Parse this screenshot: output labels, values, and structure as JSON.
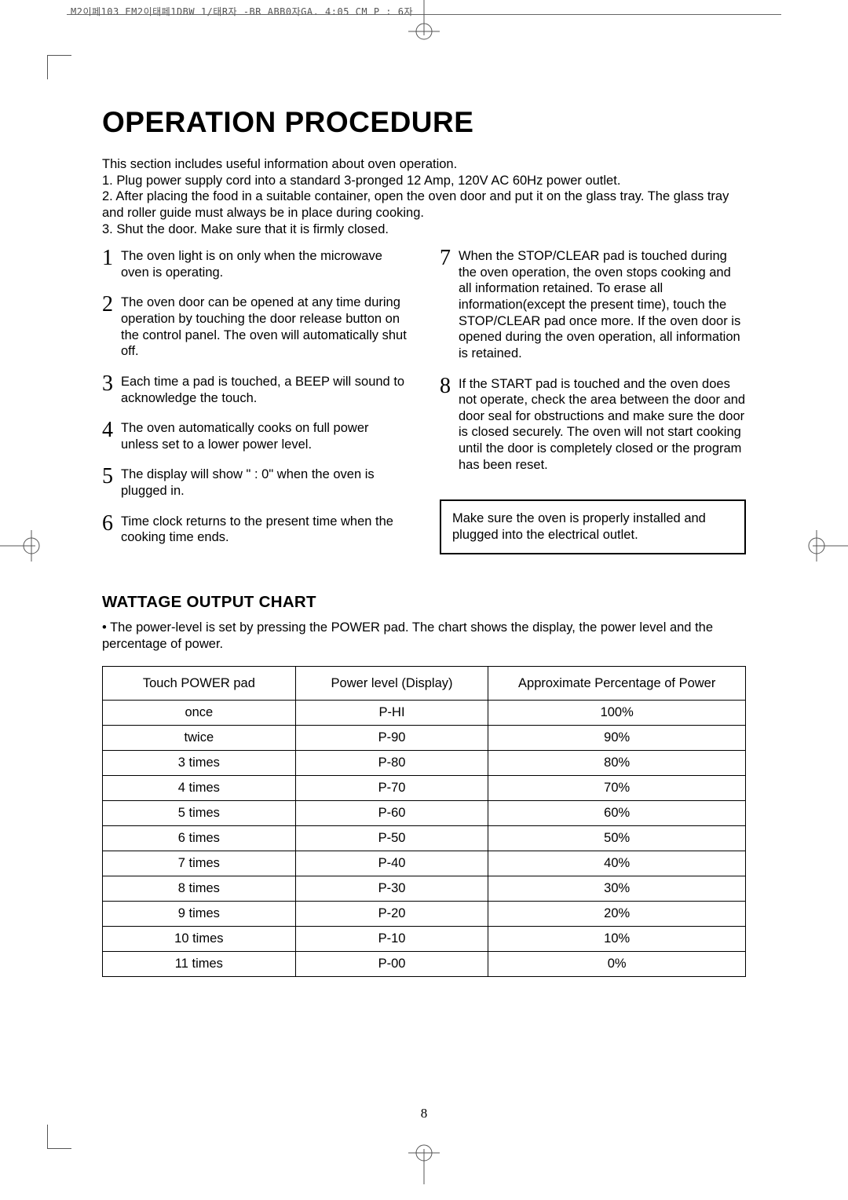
{
  "header_strip": "M2이페103 EM2이태페1DBW  1/태R자 -BR ABB0자GA. 4:05 CM P : 6자",
  "title": "OPERATION PROCEDURE",
  "intro_lead": "This section includes useful information about oven operation.",
  "intro_steps": [
    "1. Plug power supply cord into a standard 3-pronged 12 Amp, 120V AC 60Hz power outlet.",
    "2. After placing the food in a suitable container, open the oven door and put it on the glass tray. The glass tray and roller guide must always be in place during cooking.",
    "3. Shut the door. Make sure that it is firmly closed."
  ],
  "left_items": [
    {
      "n": "1",
      "t": "The oven light is on only when the microwave oven is operating."
    },
    {
      "n": "2",
      "t": "The oven door can be opened at any time during operation by touching the door release button on the control panel. The oven will automatically shut off."
    },
    {
      "n": "3",
      "t": "Each time a pad is touched, a BEEP will sound to acknowledge the touch."
    },
    {
      "n": "4",
      "t": "The oven automatically cooks on full power unless set to a lower power level."
    },
    {
      "n": "5",
      "t": "The display will show \" : 0\" when the oven is plugged in."
    },
    {
      "n": "6",
      "t": "Time clock returns to the present time when the cooking time ends."
    }
  ],
  "right_items": [
    {
      "n": "7",
      "t": "When the STOP/CLEAR pad is touched during the oven operation, the oven stops cooking and all information retained. To erase all information(except the present time), touch the STOP/CLEAR pad once more. If the oven door is opened during the oven operation, all information is retained."
    },
    {
      "n": "8",
      "t": "If the START pad is touched and the oven does not operate, check the area between the door and door seal for obstructions and make sure the door is closed securely.  The oven will not start cooking until the door is completely closed or the program has been reset."
    }
  ],
  "note_box": "Make sure the oven is properly installed and plugged into the electrical outlet.",
  "subheading": "WATTAGE OUTPUT CHART",
  "chart_intro": "• The power-level is set by pressing the POWER pad. The chart shows the display, the power level and the percentage of power.",
  "wattage_table": {
    "columns": [
      "Touch POWER pad",
      "Power level (Display)",
      "Approximate Percentage of Power"
    ],
    "rows": [
      [
        "once",
        "P-HI",
        "100%"
      ],
      [
        "twice",
        "P-90",
        "90%"
      ],
      [
        "3 times",
        "P-80",
        "80%"
      ],
      [
        "4 times",
        "P-70",
        "70%"
      ],
      [
        "5 times",
        "P-60",
        "60%"
      ],
      [
        "6 times",
        "P-50",
        "50%"
      ],
      [
        "7 times",
        "P-40",
        "40%"
      ],
      [
        "8 times",
        "P-30",
        "30%"
      ],
      [
        "9 times",
        "P-20",
        "20%"
      ],
      [
        "10 times",
        "P-10",
        "10%"
      ],
      [
        "11 times",
        "P-00",
        "0%"
      ]
    ],
    "col_widths_pct": [
      30,
      30,
      40
    ]
  },
  "page_number": "8"
}
